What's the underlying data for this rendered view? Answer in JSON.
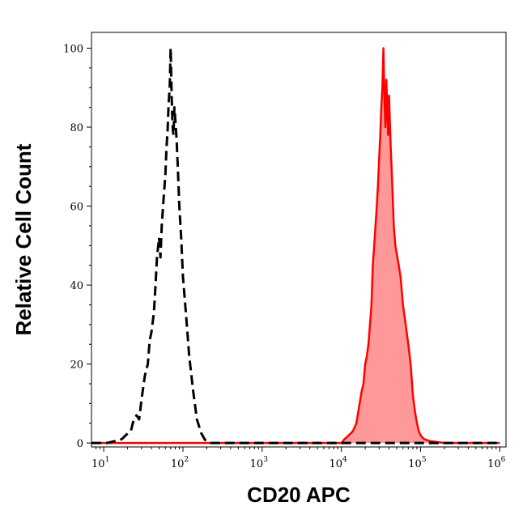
{
  "chart_data": {
    "type": "area",
    "xlabel": "CD20 APC",
    "ylabel": "Relative Cell Count",
    "x_scale": "log",
    "xlim": [
      7,
      1200000
    ],
    "ylim": [
      -1,
      104
    ],
    "x_ticks": [
      {
        "value": 10,
        "base": "10",
        "exp": "1"
      },
      {
        "value": 100,
        "base": "10",
        "exp": "2"
      },
      {
        "value": 1000,
        "base": "10",
        "exp": "3"
      },
      {
        "value": 10000,
        "base": "10",
        "exp": "4"
      },
      {
        "value": 100000,
        "base": "10",
        "exp": "5"
      },
      {
        "value": 1000000,
        "base": "10",
        "exp": "6"
      }
    ],
    "y_ticks": [
      "0",
      "20",
      "40",
      "60",
      "80",
      "100"
    ],
    "grid": false,
    "series": [
      {
        "style": "dashed",
        "color": "#000000",
        "fill": "none",
        "x": [
          7,
          11,
          14,
          17,
          19,
          22,
          24,
          26,
          28,
          30,
          33,
          36,
          38,
          40,
          43,
          45,
          47,
          50,
          52,
          54,
          57,
          60,
          62,
          64,
          66,
          68,
          70,
          72,
          74,
          76,
          78,
          80,
          83,
          86,
          90,
          95,
          100,
          110,
          120,
          135,
          150,
          170,
          190,
          220,
          300,
          500,
          1000,
          2000,
          4000,
          8000,
          15000,
          30000,
          70000,
          150000,
          400000,
          1000000
        ],
        "y": [
          0,
          0,
          0.5,
          1,
          2,
          3,
          6,
          7,
          6,
          11,
          17,
          20,
          26,
          28,
          33,
          40,
          47,
          52,
          47,
          55,
          62,
          68,
          75,
          79,
          86,
          90,
          100,
          88,
          80,
          78,
          85,
          82,
          77,
          70,
          60,
          52,
          42,
          32,
          22,
          13,
          6,
          2.5,
          0.8,
          0,
          0,
          0,
          0,
          0,
          0,
          0,
          0,
          0,
          0,
          0,
          0,
          0
        ]
      },
      {
        "style": "solid",
        "color": "#ff0000",
        "fill": "#ff9999",
        "x": [
          7,
          100,
          1000,
          5000,
          10000,
          11000,
          12500,
          14000,
          15500,
          17000,
          18000,
          19000,
          20000,
          21000,
          22000,
          23000,
          24000,
          25000,
          26000,
          27000,
          28000,
          29000,
          30000,
          31000,
          32000,
          33000,
          34000,
          35000,
          36000,
          37000,
          38000,
          39000,
          40000,
          42000,
          44000,
          46000,
          48000,
          50000,
          53000,
          56000,
          60000,
          65000,
          70000,
          75000,
          80000,
          85000,
          90000,
          95000,
          100000,
          110000,
          130000,
          200000,
          1000000
        ],
        "y": [
          0,
          0,
          0,
          0,
          0,
          1,
          2,
          3,
          5,
          10,
          13,
          15,
          20,
          22,
          25,
          30,
          35,
          45,
          50,
          55,
          60,
          65,
          72,
          78,
          85,
          90,
          100,
          88,
          80,
          92,
          85,
          78,
          88,
          75,
          65,
          55,
          50,
          48,
          45,
          42,
          35,
          30,
          25,
          20,
          12,
          8,
          5,
          3,
          2,
          1,
          0.5,
          0,
          0
        ]
      }
    ]
  }
}
